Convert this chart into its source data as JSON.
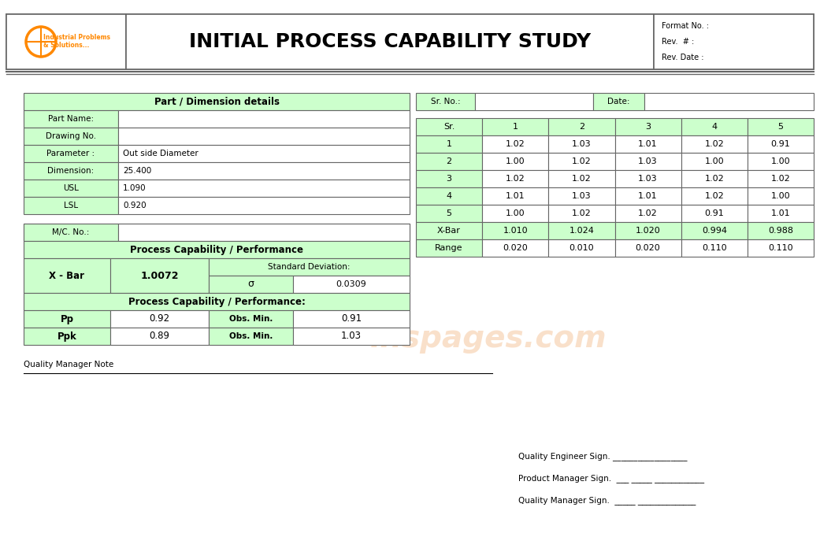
{
  "title": "INITIAL PROCESS CAPABILITY STUDY",
  "white": "#ffffff",
  "green_light": "#ccffcc",
  "border_color": "#666666",
  "format_no": "Format No. :",
  "rev_no": "Rev.  # :",
  "rev_date": "Rev. Date :",
  "part_dim_header": "Part / Dimension details",
  "left_labels": [
    "Part Name:",
    "Drawing No.",
    "Parameter :",
    "Dimension:",
    "USL",
    "LSL"
  ],
  "left_values": [
    "",
    "",
    "Out side Diameter",
    "25.400",
    "1.090",
    "0.920"
  ],
  "mc_label": "M/C. No.:",
  "proc_cap_header": "Process Capability / Performance",
  "xbar_label": "X - Bar",
  "xbar_value": "1.0072",
  "std_dev_label": "Standard Deviation:",
  "sigma_label": "σ",
  "sigma_value": "0.0309",
  "proc_perf_label": "Process Capability / Performance:",
  "pp_label": "Pp",
  "pp_value": "0.92",
  "ppk_label": "Ppk",
  "ppk_value": "0.89",
  "obs_min_label": "Obs. Min.",
  "obs_min_pp": "0.91",
  "obs_min_ppk": "1.03",
  "sr_no_label": "Sr. No.:",
  "date_label": "Date:",
  "data_headers": [
    "Sr.",
    "1",
    "2",
    "3",
    "4",
    "5"
  ],
  "data_rows": [
    [
      "1",
      "1.02",
      "1.03",
      "1.01",
      "1.02",
      "0.91"
    ],
    [
      "2",
      "1.00",
      "1.02",
      "1.03",
      "1.00",
      "1.00"
    ],
    [
      "3",
      "1.02",
      "1.02",
      "1.03",
      "1.02",
      "1.02"
    ],
    [
      "4",
      "1.01",
      "1.03",
      "1.01",
      "1.02",
      "1.00"
    ],
    [
      "5",
      "1.00",
      "1.02",
      "1.02",
      "0.91",
      "1.01"
    ]
  ],
  "xbar_row": [
    "X-Bar",
    "1.010",
    "1.024",
    "1.020",
    "0.994",
    "0.988"
  ],
  "range_row": [
    "Range",
    "0.020",
    "0.010",
    "0.020",
    "0.110",
    "0.110"
  ],
  "quality_note": "Quality Manager Note",
  "quality_engineer": "Quality Engineer Sign. __________________",
  "product_manager": "Product Manager Sign.  ___ _____ ____________",
  "quality_manager": "Quality Manager Sign.  _____ ______________",
  "watermark": "inspages.com"
}
